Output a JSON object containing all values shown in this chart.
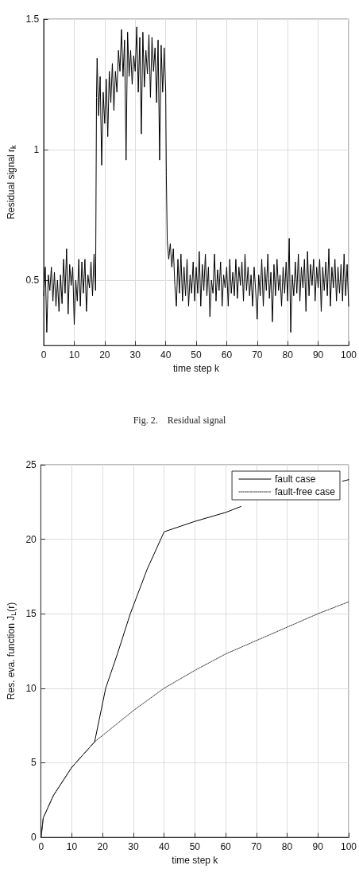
{
  "chart_data": [
    {
      "type": "line",
      "xlabel": "time step k",
      "ylabel": "Residual signal r$_{k}$",
      "annotations": [
        "Fig. 2.    Residual signal"
      ],
      "xlim": [
        0,
        100
      ],
      "xticks": [
        0,
        10,
        20,
        30,
        40,
        50,
        60,
        70,
        80,
        90,
        100
      ],
      "ylim": [
        0.25,
        1.5
      ],
      "yticks": [
        0.5,
        1,
        1.5
      ],
      "grid": true,
      "legend": false,
      "marker": "none",
      "line_style": "solid",
      "series": [
        {
          "color": "#000000",
          "x": [
            0,
            0.5,
            1,
            1.5,
            2,
            2.5,
            3,
            3.5,
            4,
            4.5,
            5,
            5.5,
            6,
            6.5,
            7,
            7.5,
            8,
            8.5,
            9,
            9.5,
            10,
            10.5,
            11,
            11.5,
            12,
            12.5,
            13,
            13.5,
            14,
            14.5,
            15,
            15.5,
            16,
            16.5,
            17,
            17.3,
            17.5,
            18,
            18.5,
            19,
            19.5,
            20,
            20.5,
            21,
            21.5,
            22,
            22.5,
            23,
            23.5,
            24,
            24.5,
            25,
            25.5,
            26,
            26.5,
            27,
            27.5,
            28,
            28.5,
            29,
            29.5,
            30,
            30.5,
            31,
            31.5,
            32,
            32.5,
            33,
            33.5,
            34,
            34.5,
            35,
            35.5,
            36,
            36.5,
            37,
            37.5,
            38,
            38.5,
            39,
            39.5,
            40,
            40.2,
            40.5,
            41,
            41.5,
            42,
            42.5,
            43,
            43.5,
            44,
            44.5,
            45,
            45.5,
            46,
            46.5,
            47,
            47.5,
            48,
            48.5,
            49,
            49.5,
            50,
            50.5,
            51,
            51.5,
            52,
            52.5,
            53,
            53.5,
            54,
            54.5,
            55,
            55.5,
            56,
            56.5,
            57,
            57.5,
            58,
            58.5,
            59,
            59.5,
            60,
            60.5,
            61,
            61.5,
            62,
            62.5,
            63,
            63.5,
            64,
            64.5,
            65,
            65.5,
            66,
            66.5,
            67,
            67.5,
            68,
            68.5,
            69,
            69.5,
            70,
            70.5,
            71,
            71.5,
            72,
            72.5,
            73,
            73.5,
            74,
            74.5,
            75,
            75.5,
            76,
            76.5,
            77,
            77.5,
            78,
            78.5,
            79,
            79.5,
            80,
            80.5,
            81,
            81.5,
            82,
            82.5,
            83,
            83.5,
            84,
            84.5,
            85,
            85.5,
            86,
            86.5,
            87,
            87.5,
            88,
            88.5,
            89,
            89.5,
            90,
            90.5,
            91,
            91.5,
            92,
            92.5,
            93,
            93.5,
            94,
            94.5,
            95,
            95.5,
            96,
            96.5,
            97,
            97.5,
            98,
            98.5,
            99,
            99.5,
            100
          ],
          "values": [
            0.44,
            0.55,
            0.3,
            0.52,
            0.46,
            0.55,
            0.42,
            0.53,
            0.4,
            0.5,
            0.38,
            0.52,
            0.41,
            0.58,
            0.45,
            0.62,
            0.37,
            0.56,
            0.48,
            0.55,
            0.33,
            0.5,
            0.42,
            0.58,
            0.4,
            0.57,
            0.45,
            0.58,
            0.38,
            0.52,
            0.47,
            0.57,
            0.44,
            0.6,
            0.46,
            1.2,
            1.35,
            1.13,
            1.28,
            0.94,
            1.22,
            1.1,
            1.27,
            1.05,
            1.3,
            1.18,
            1.33,
            1.15,
            1.3,
            1.22,
            1.38,
            1.3,
            1.46,
            1.28,
            1.42,
            0.96,
            1.45,
            1.28,
            1.38,
            1.25,
            1.36,
            1.3,
            1.47,
            1.22,
            1.43,
            1.06,
            1.45,
            1.24,
            1.38,
            1.29,
            1.44,
            1.2,
            1.43,
            1.3,
            1.39,
            1.18,
            1.42,
            0.96,
            1.4,
            1.22,
            1.39,
            1.22,
            0.9,
            0.65,
            0.58,
            0.64,
            0.55,
            0.62,
            0.48,
            0.4,
            0.58,
            0.45,
            0.6,
            0.42,
            0.55,
            0.44,
            0.58,
            0.4,
            0.52,
            0.45,
            0.57,
            0.42,
            0.55,
            0.45,
            0.61,
            0.4,
            0.56,
            0.46,
            0.6,
            0.44,
            0.55,
            0.36,
            0.5,
            0.45,
            0.6,
            0.42,
            0.54,
            0.46,
            0.57,
            0.4,
            0.52,
            0.47,
            0.55,
            0.4,
            0.58,
            0.45,
            0.53,
            0.44,
            0.58,
            0.43,
            0.55,
            0.48,
            0.57,
            0.42,
            0.6,
            0.46,
            0.55,
            0.44,
            0.52,
            0.4,
            0.55,
            0.46,
            0.35,
            0.52,
            0.44,
            0.58,
            0.4,
            0.55,
            0.46,
            0.6,
            0.43,
            0.53,
            0.34,
            0.56,
            0.44,
            0.58,
            0.46,
            0.52,
            0.4,
            0.55,
            0.45,
            0.57,
            0.42,
            0.66,
            0.3,
            0.52,
            0.44,
            0.57,
            0.45,
            0.6,
            0.42,
            0.55,
            0.47,
            0.58,
            0.38,
            0.61,
            0.44,
            0.56,
            0.48,
            0.58,
            0.42,
            0.55,
            0.47,
            0.58,
            0.38,
            0.55,
            0.46,
            0.57,
            0.44,
            0.62,
            0.4,
            0.55,
            0.47,
            0.58,
            0.42,
            0.55,
            0.45,
            0.56,
            0.42,
            0.6,
            0.44,
            0.56,
            0.4
          ]
        }
      ]
    },
    {
      "type": "line",
      "xlabel": "time step k",
      "ylabel": "Res. eva. function J$_{L}$(r)",
      "xlim": [
        0,
        100
      ],
      "xticks": [
        0,
        10,
        20,
        30,
        40,
        50,
        60,
        70,
        80,
        90,
        100
      ],
      "ylim": [
        0,
        25
      ],
      "yticks": [
        0,
        5,
        10,
        15,
        20,
        25
      ],
      "grid": true,
      "legend": "top right",
      "marker": "none",
      "series": [
        {
          "name": "fault case",
          "color": "#000000",
          "line_style": "solid",
          "x": [
            0,
            0.7,
            4,
            10,
            17.4,
            21,
            24.8,
            29,
            34.5,
            40,
            50,
            60,
            65,
            80,
            98,
            100
          ],
          "values": [
            0,
            1.3,
            2.8,
            4.7,
            6.4,
            10,
            12.3,
            15,
            18,
            20.5,
            21.2,
            21.8,
            22.2,
            null,
            23.9,
            24
          ]
        },
        {
          "name": "fault-free case",
          "color": "#333333",
          "line_style": "dotted",
          "x": [
            0,
            0.7,
            4,
            10,
            17.4,
            30,
            40,
            50,
            60,
            70,
            80,
            90,
            100
          ],
          "values": [
            0,
            1.3,
            2.8,
            4.7,
            6.4,
            8.5,
            10,
            11.2,
            12.3,
            13.2,
            14.1,
            15,
            15.8
          ]
        }
      ]
    }
  ]
}
